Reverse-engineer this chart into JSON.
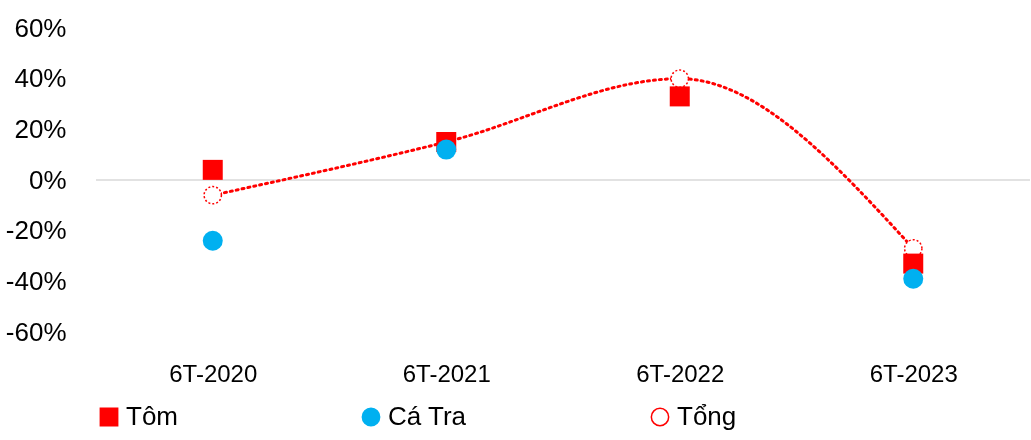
{
  "chart_data": {
    "type": "scatter",
    "categories": [
      "6T-2020",
      "6T-2021",
      "6T-2022",
      "6T-2023"
    ],
    "series": [
      {
        "name": "Tôm",
        "color": "#ff0000",
        "marker": "square",
        "values": [
          4,
          15,
          33,
          -33
        ]
      },
      {
        "name": "Cá Tra",
        "color": "#00b0f0",
        "marker": "circle",
        "values": [
          -24,
          12,
          null,
          -39
        ]
      },
      {
        "name": "Tổng",
        "type": "line",
        "color": "#ff0000",
        "marker": "circle",
        "line_style": "dotted",
        "values": [
          -6,
          15,
          40,
          -27
        ]
      }
    ],
    "ylim": [
      -60,
      60
    ],
    "yticks": [
      {
        "value": -60,
        "label": "-60%"
      },
      {
        "value": -40,
        "label": "-40%"
      },
      {
        "value": -20,
        "label": "-20%"
      },
      {
        "value": 0,
        "label": "0%"
      },
      {
        "value": 20,
        "label": "20%"
      },
      {
        "value": 40,
        "label": "40%"
      },
      {
        "value": 60,
        "label": "60%"
      }
    ],
    "ref_lines": [
      {
        "axis": "y",
        "value": 0,
        "color": "#d9d9d9"
      }
    ],
    "legend": "bottom",
    "grid": false
  }
}
